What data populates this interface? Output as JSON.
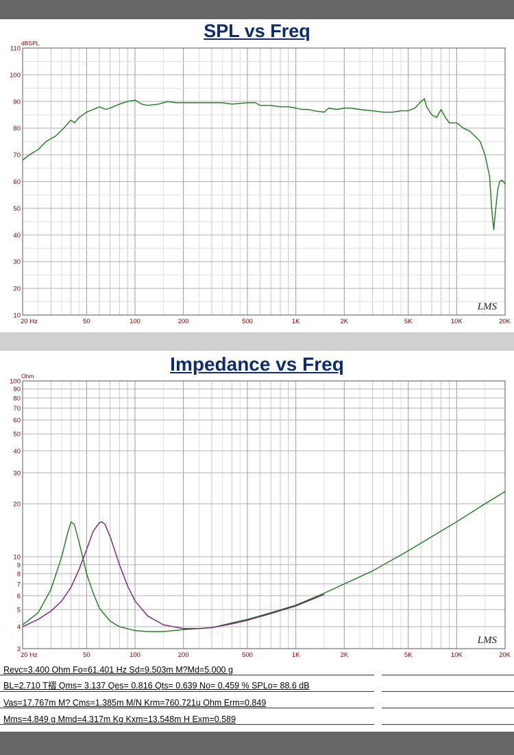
{
  "colors": {
    "title": "#0d2c6e",
    "grid": "#b8b8b8",
    "axis_text": "#7a0000",
    "green": "#1a7a1a",
    "purple": "#7a1a7a"
  },
  "chart_data": [
    {
      "type": "line",
      "title": "SPL vs Freq",
      "ylabel": "dBSPL",
      "x_scale": "log",
      "xlim": [
        20,
        20000
      ],
      "ylim": [
        10,
        110
      ],
      "grid": true,
      "x_ticks": [
        20,
        50,
        100,
        200,
        500,
        1000,
        2000,
        5000,
        10000,
        20000
      ],
      "x_tick_labels": [
        "20 Hz",
        "50",
        "100",
        "200",
        "500",
        "1K",
        "2K",
        "5K",
        "10K",
        "20K"
      ],
      "y_ticks": [
        10,
        20,
        30,
        40,
        50,
        60,
        70,
        80,
        90,
        100,
        110
      ],
      "y_tick_labels": [
        "10",
        "20",
        "30",
        "40",
        "50",
        "60",
        "70",
        "80",
        "90",
        "100",
        "110"
      ],
      "watermark": "LMS",
      "series": [
        {
          "color": "#1a7a1a",
          "x": [
            20,
            22,
            25,
            28,
            32,
            36,
            40,
            42,
            45,
            50,
            55,
            60,
            66,
            70,
            80,
            90,
            100,
            110,
            120,
            140,
            160,
            180,
            200,
            250,
            300,
            350,
            400,
            500,
            560,
            600,
            700,
            800,
            900,
            1000,
            1100,
            1200,
            1300,
            1500,
            1600,
            1800,
            2000,
            2200,
            2500,
            3000,
            3500,
            4000,
            4500,
            5000,
            5500,
            6000,
            6300,
            6500,
            7000,
            7500,
            8000,
            8500,
            9000,
            10000,
            11000,
            12000,
            13000,
            14000,
            15000,
            16000,
            16500,
            17000,
            17500,
            18000,
            18500,
            19000,
            19500,
            20000
          ],
          "y": [
            68,
            70,
            72,
            75,
            77,
            80,
            83,
            82,
            84,
            86,
            87,
            88,
            87,
            87.5,
            89,
            90,
            90.5,
            89,
            88.5,
            89,
            90,
            89.5,
            89.5,
            89.5,
            89.5,
            89.5,
            89,
            89.5,
            89.5,
            88.5,
            88.5,
            88,
            88,
            87.5,
            87,
            87,
            86.5,
            86,
            87.5,
            87,
            87.5,
            87.5,
            87,
            86.5,
            86,
            86,
            86.5,
            86.5,
            87.5,
            90,
            91,
            88,
            85,
            84,
            87,
            84,
            82,
            82,
            80,
            79,
            77,
            75,
            70,
            62,
            50,
            42,
            50,
            57,
            60,
            60.5,
            60,
            59
          ]
        }
      ]
    },
    {
      "type": "line",
      "title": "Impedance vs Freq",
      "ylabel": "Ohm",
      "x_scale": "log",
      "y_scale": "log",
      "xlim": [
        20,
        20000
      ],
      "ylim": [
        3,
        100
      ],
      "grid": true,
      "x_ticks": [
        20,
        50,
        100,
        200,
        500,
        1000,
        2000,
        5000,
        10000,
        20000
      ],
      "x_tick_labels": [
        "20 Hz",
        "50",
        "100",
        "200",
        "500",
        "1K",
        "2K",
        "5K",
        "10K",
        "20K"
      ],
      "y_ticks": [
        3,
        4,
        5,
        6,
        7,
        8,
        9,
        10,
        20,
        30,
        40,
        50,
        60,
        70,
        80,
        90,
        100
      ],
      "y_tick_labels": [
        "3",
        "4",
        "5",
        "6",
        "7",
        "8",
        "9",
        "10",
        "20",
        "30",
        "40",
        "50",
        "60",
        "70",
        "80",
        "90",
        "100"
      ],
      "watermark": "LMS",
      "series": [
        {
          "color": "#1a7a1a",
          "x": [
            20,
            25,
            30,
            35,
            38,
            40,
            42,
            45,
            50,
            55,
            60,
            70,
            80,
            100,
            120,
            150,
            200,
            250,
            300,
            400,
            500,
            700,
            1000,
            1500,
            2000,
            3000,
            5000,
            7000,
            10000,
            15000,
            20000
          ],
          "y": [
            4.1,
            4.8,
            6.5,
            10,
            13.5,
            15.8,
            15.2,
            12,
            8,
            6.2,
            5.1,
            4.3,
            4,
            3.8,
            3.75,
            3.75,
            3.85,
            3.9,
            3.95,
            4.2,
            4.4,
            4.8,
            5.3,
            6.2,
            7,
            8.3,
            10.8,
            13,
            15.8,
            20,
            23.5
          ]
        },
        {
          "color": "#7a1a7a",
          "x": [
            20,
            25,
            30,
            35,
            40,
            45,
            50,
            55,
            60,
            62,
            65,
            70,
            80,
            90,
            100,
            120,
            150,
            200,
            250,
            300,
            400,
            500,
            700,
            1000,
            1500
          ],
          "y": [
            4,
            4.4,
            4.9,
            5.6,
            6.7,
            8.5,
            11,
            14,
            15.6,
            15.8,
            15.3,
            13,
            9,
            6.8,
            5.6,
            4.6,
            4.1,
            3.9,
            3.9,
            3.95,
            4.15,
            4.35,
            4.75,
            5.25,
            6.1
          ]
        }
      ]
    }
  ],
  "params": [
    "Revc=3.400 Ohm  Fo=61.401 Hz  Sd=9.503m M?Md=5.000 g",
    "BL=2.710 T褶  Qms= 3.137  Qes= 0.816  Qts= 0.639  No= 0.459 %  SPLo= 88.6 dB",
    "Vas=17.767m M? Cms=1.385m M/N  Krm=760.721u Ohm  Erm=0.849",
    "Mms=4.849 g  Mmd=4.317m Kg  Kxm=13.548m H  Exm=0.589"
  ]
}
